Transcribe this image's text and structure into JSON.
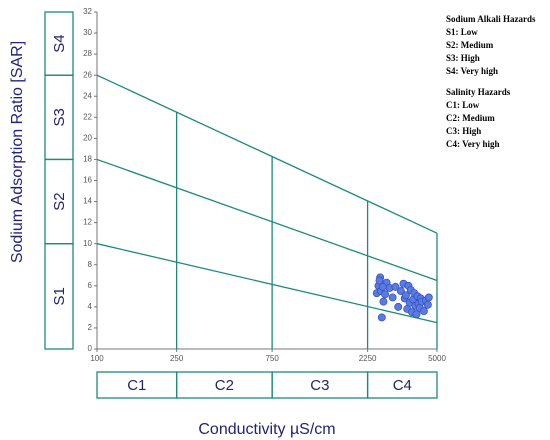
{
  "chart_data": {
    "type": "scatter",
    "y_label": "Sodium Adsorption Ratio [SAR]",
    "x_label": "Conductivity µS/cm",
    "log_x": true,
    "xlim": [
      100,
      5000
    ],
    "xticks": [
      100,
      250,
      750,
      2250,
      5000
    ],
    "ylim": [
      0,
      32
    ],
    "yticks": [
      0,
      2,
      4,
      6,
      8,
      10,
      12,
      14,
      16,
      18,
      20,
      22,
      24,
      26,
      28,
      30,
      32
    ],
    "color": "#5a7ae6",
    "line_color": "#1f8a7c",
    "x": [
      2500,
      2550,
      2600,
      2620,
      2650,
      2700,
      2750,
      2800,
      2900,
      3000,
      3100,
      3200,
      3300,
      3400,
      3450,
      3500,
      3550,
      3600,
      3650,
      3700,
      3750,
      3800,
      3850,
      3900,
      3950,
      4000,
      4050,
      4100,
      4150,
      4200,
      4300,
      4400,
      4500,
      4550,
      2580,
      2680
    ],
    "y": [
      5.3,
      6.0,
      6.8,
      5.5,
      3.0,
      4.5,
      5.2,
      6.3,
      5.8,
      4.9,
      5.9,
      4.0,
      5.5,
      6.2,
      4.8,
      5.1,
      3.8,
      6.0,
      4.4,
      5.6,
      3.5,
      4.7,
      5.3,
      4.1,
      3.3,
      5.0,
      4.3,
      3.9,
      4.8,
      4.5,
      3.6,
      4.6,
      4.2,
      4.9,
      6.5,
      5.9
    ],
    "boundaries": [
      {
        "x": [
          100,
          5000
        ],
        "y": [
          10,
          2.5
        ]
      },
      {
        "x": [
          100,
          5000
        ],
        "y": [
          18,
          6.5
        ]
      },
      {
        "x": [
          100,
          5000
        ],
        "y": [
          26,
          11
        ]
      },
      {
        "x": [
          250,
          250
        ],
        "y": [
          0,
          22.5
        ]
      },
      {
        "x": [
          750,
          750
        ],
        "y": [
          0,
          18.3
        ]
      },
      {
        "x": [
          2250,
          2250
        ],
        "y": [
          0,
          14.1
        ]
      },
      {
        "x": [
          5000,
          5000
        ],
        "y": [
          0,
          11
        ]
      }
    ],
    "sodium_zones": [
      {
        "label": "S1",
        "range": [
          0,
          10
        ]
      },
      {
        "label": "S2",
        "range": [
          10,
          18
        ]
      },
      {
        "label": "S3",
        "range": [
          18,
          26
        ]
      },
      {
        "label": "S4",
        "range": [
          26,
          32
        ]
      }
    ],
    "salinity_zones": [
      {
        "label": "C1",
        "range": [
          100,
          250
        ]
      },
      {
        "label": "C2",
        "range": [
          250,
          750
        ]
      },
      {
        "label": "C3",
        "range": [
          750,
          2250
        ]
      },
      {
        "label": "C4",
        "range": [
          2250,
          5000
        ]
      }
    ],
    "legend": {
      "sodium_title": "Sodium Alkali Hazards",
      "sodium": [
        "S1: Low",
        "S2: Medium",
        "S3: High",
        "S4: Very high"
      ],
      "salinity_title": "Salinity Hazards",
      "salinity": [
        "C1: Low",
        "C2: Medium",
        "C3: High",
        "C4: Very high"
      ]
    }
  }
}
